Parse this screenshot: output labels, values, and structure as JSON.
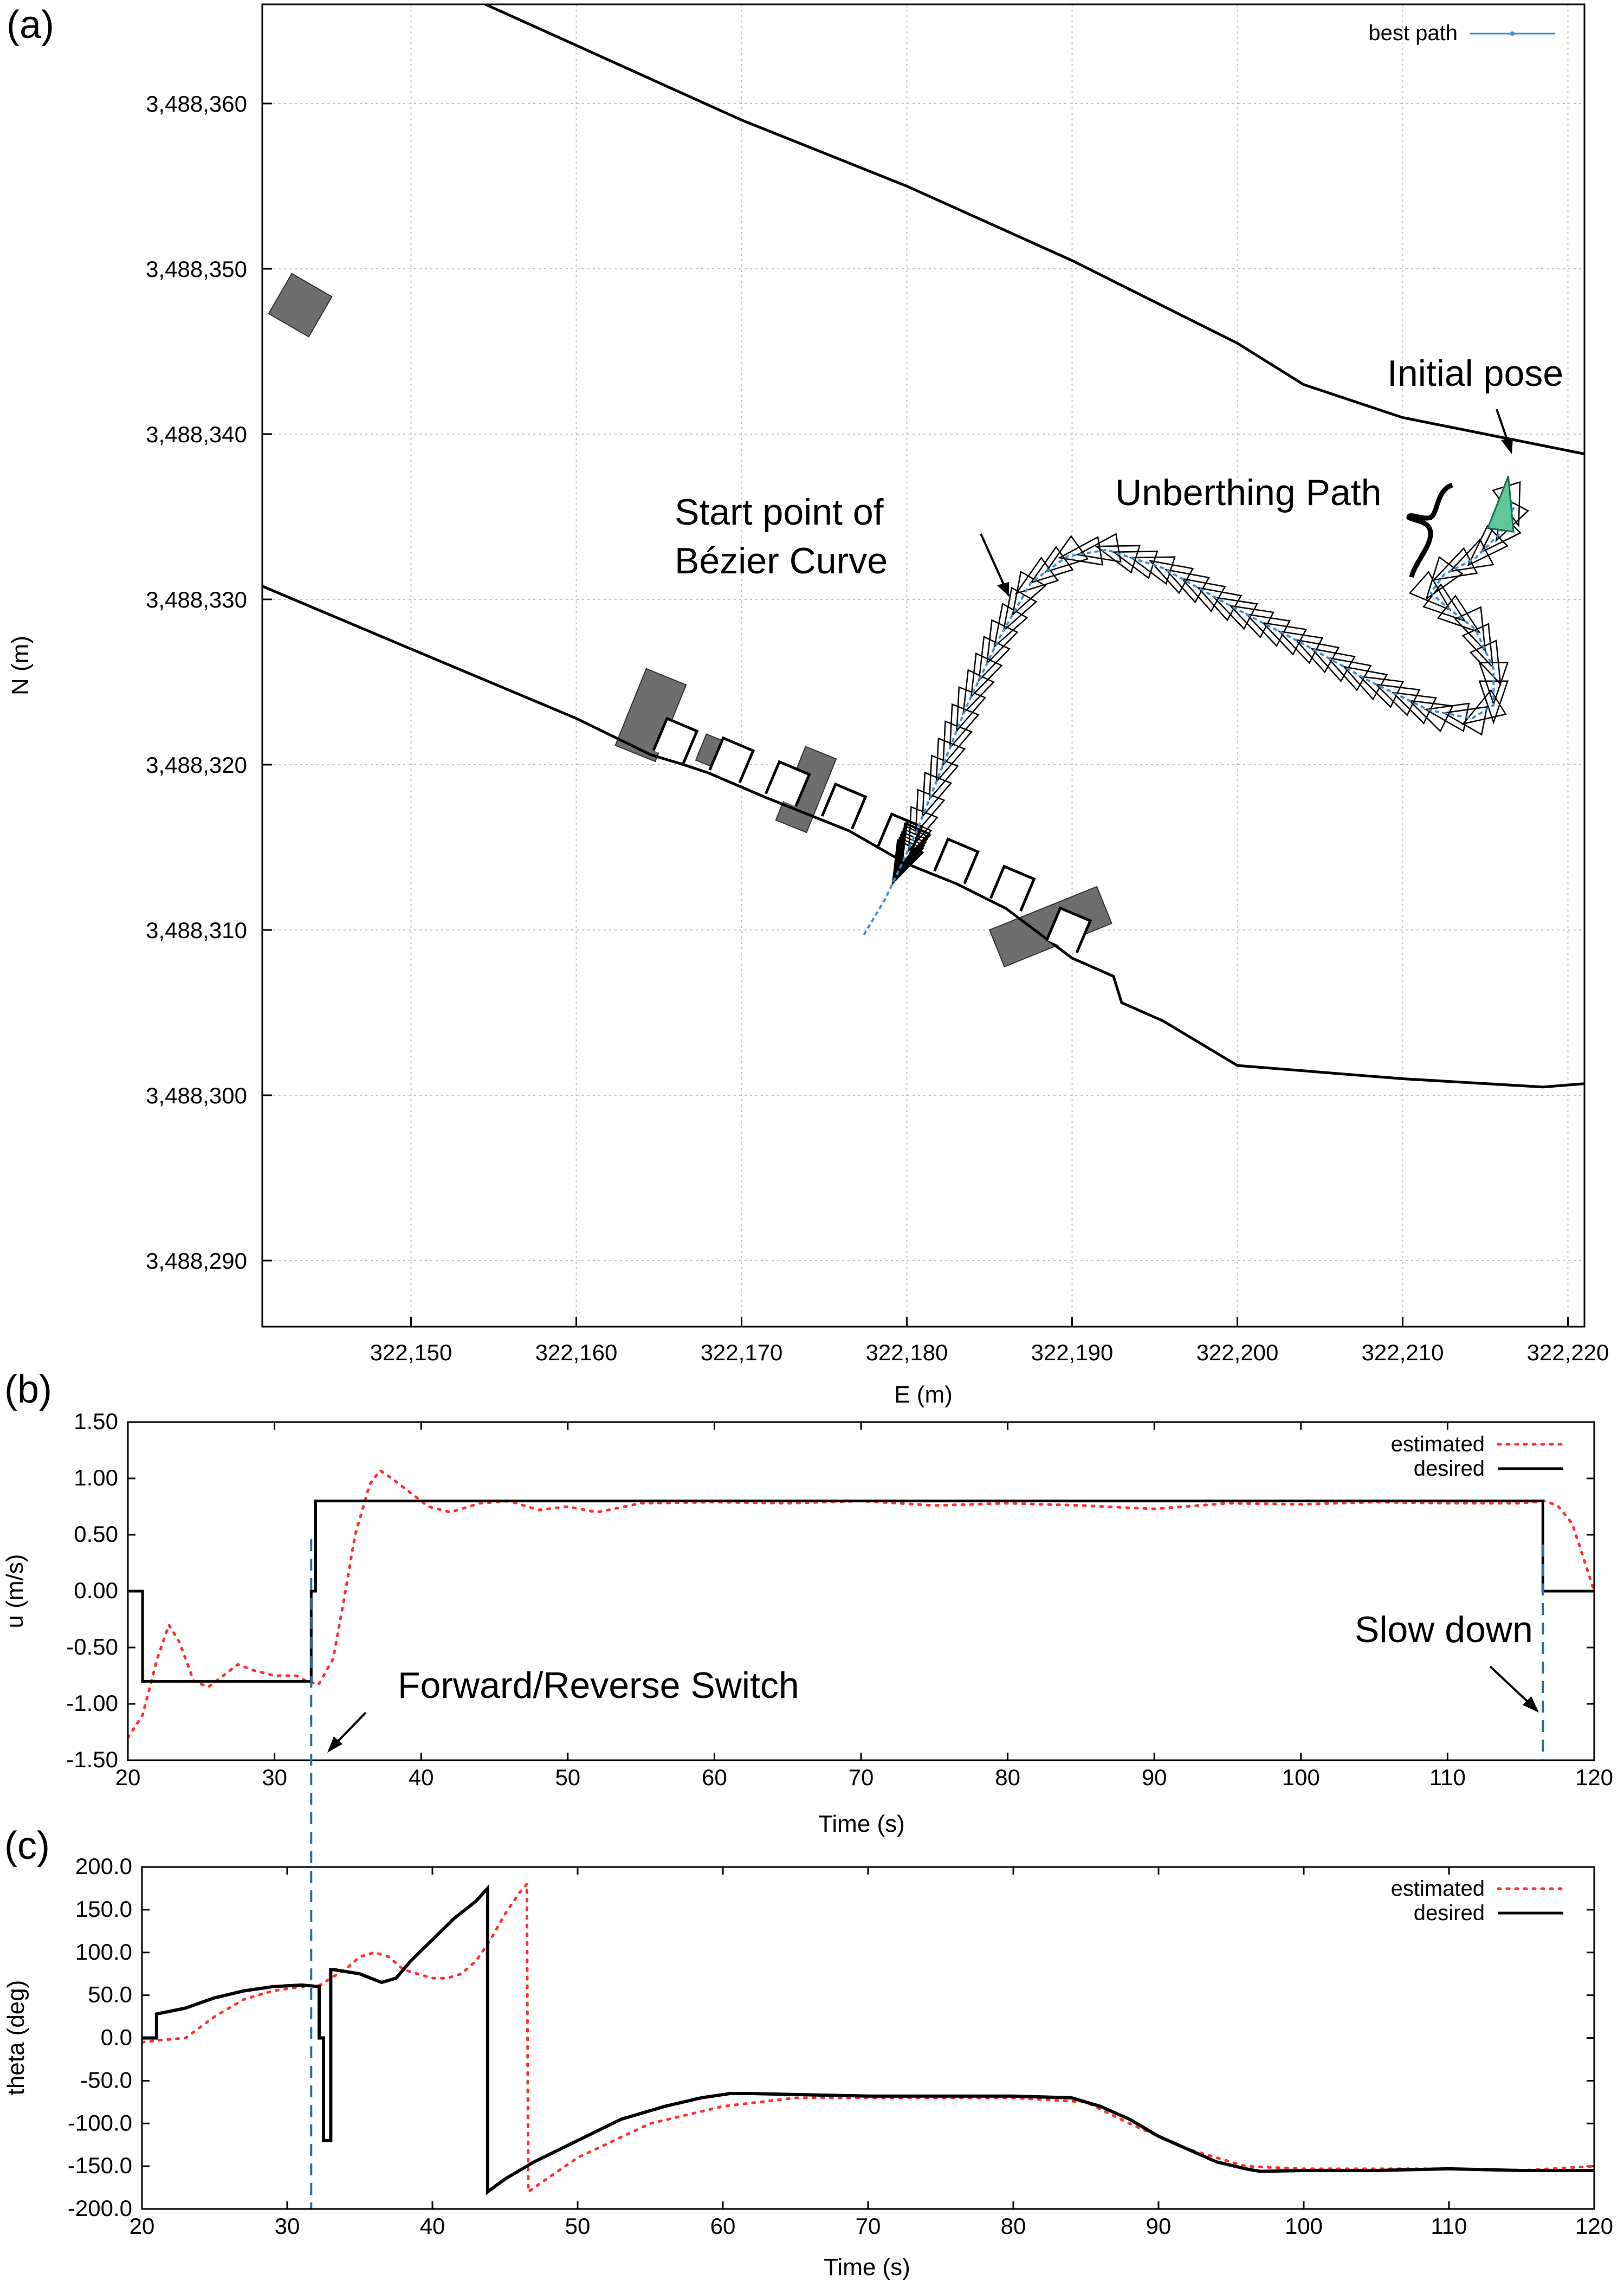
{
  "colors": {
    "frame": "#000000",
    "grid": "#bdbdbd",
    "path": "#3a8fd0",
    "estimated": "#ff3030",
    "desired": "#000000",
    "obstacle": "#6e6e6e",
    "initial_pose": "#5fc79a",
    "switch_line": "#1f6fb2"
  },
  "annotations": {
    "start_point_line1": "Start point of",
    "start_point_line2": "Bézier Curve",
    "unberthing": "Unberthing Path",
    "initial_pose": "Initial pose",
    "forward_reverse": "Forward/Reverse Switch",
    "slow_down": "Slow down"
  },
  "chart_data": [
    {
      "panel": "(a)",
      "type": "scatter",
      "title": "",
      "xlabel": "E (m)",
      "ylabel": "N (m)",
      "xlim": [
        322141,
        322221
      ],
      "ylim": [
        3488286,
        3488366
      ],
      "xticks": [
        322150,
        322160,
        322170,
        322180,
        322190,
        322200,
        322210,
        322220
      ],
      "xtick_labels": [
        "322,150",
        "322,160",
        "322,170",
        "322,180",
        "322,190",
        "322,200",
        "322,210",
        "322,220"
      ],
      "yticks": [
        3488290,
        3488300,
        3488310,
        3488320,
        3488330,
        3488340,
        3488350,
        3488360
      ],
      "ytick_labels": [
        "3,488,290",
        "3,488,300",
        "3,488,310",
        "3,488,320",
        "3,488,330",
        "3,488,340",
        "3,488,350",
        "3,488,360"
      ],
      "grid": true,
      "legend": [
        {
          "name": "best path",
          "position": "top-right"
        }
      ],
      "series": [
        {
          "name": "best path",
          "x": [
            322177.4,
            322178.7,
            322179.7,
            322180.6,
            322182.0,
            322183.6,
            322185.5,
            322187.5,
            322189.7,
            322192.1,
            322195.5,
            322199.6,
            322204.0,
            322208.1,
            322211.6,
            322214.2,
            322215.5,
            322215.5,
            322214.4,
            322212.6,
            322211.7,
            322212.5,
            322214.4,
            322215.9,
            322216.7,
            322216.3
          ],
          "y": [
            3488309.7,
            3488311.9,
            3488314.0,
            3488316.0,
            3488319.5,
            3488323.5,
            3488327.5,
            3488331.0,
            3488332.6,
            3488333.0,
            3488331.9,
            3488329.6,
            3488327.3,
            3488325.0,
            3488323.3,
            3488322.8,
            3488323.6,
            3488325.8,
            3488328.2,
            3488329.6,
            3488330.4,
            3488331.5,
            3488332.5,
            3488334.0,
            3488335.5,
            3488336.8
          ]
        },
        {
          "name": "upper shoreline",
          "x": [
            322154.5,
            322170.0,
            322180.0,
            322190.0,
            322200.0,
            322204.0,
            322210.0,
            322221.0
          ],
          "y": [
            3488366.0,
            3488359.0,
            3488355.0,
            3488350.5,
            3488345.5,
            3488343.0,
            3488341.0,
            3488338.8
          ]
        },
        {
          "name": "quay",
          "x": [
            322141.0,
            322150.0,
            322160.0,
            322164.5,
            322166.5,
            322168.0,
            322171.5,
            322176.5,
            322180.0,
            322183.0,
            322186.0,
            322190.0,
            322192.5,
            322193.0,
            322195.5,
            322200.0,
            322210.0,
            322218.5,
            322221.0
          ],
          "y": [
            3488330.8,
            3488327.0,
            3488322.8,
            3488320.6,
            3488320.0,
            3488319.5,
            3488318.0,
            3488316.0,
            3488314.0,
            3488312.8,
            3488311.3,
            3488308.3,
            3488307.2,
            3488305.6,
            3488304.5,
            3488301.8,
            3488301.0,
            3488300.5,
            3488300.7
          ]
        }
      ],
      "obstacles": [
        {
          "cx": 322143.3,
          "cy": 3488347.8,
          "w": 2.8,
          "h": 2.8,
          "angle": 30
        },
        {
          "cx": 322164.5,
          "cy": 3488323.0,
          "w": 2.6,
          "h": 5.0,
          "angle": 22
        },
        {
          "cx": 322168.2,
          "cy": 3488320.8,
          "w": 1.4,
          "h": 1.7,
          "angle": 22
        },
        {
          "cx": 322173.9,
          "cy": 3488318.5,
          "w": 2.0,
          "h": 4.8,
          "angle": 22
        },
        {
          "cx": 322188.7,
          "cy": 3488310.2,
          "w": 7.0,
          "h": 2.4,
          "angle": -22
        }
      ]
    },
    {
      "panel": "(b)",
      "type": "line",
      "title": "",
      "xlabel": "Time (s)",
      "ylabel": "u (m/s)",
      "xlim": [
        20,
        120
      ],
      "ylim": [
        -1.5,
        1.5
      ],
      "xticks": [
        20,
        30,
        40,
        50,
        60,
        70,
        80,
        90,
        100,
        110,
        120
      ],
      "xtick_labels": [
        "20",
        "30",
        "40",
        "50",
        "60",
        "70",
        "80",
        "90",
        "100",
        "110",
        "120"
      ],
      "yticks": [
        -1.5,
        -1.0,
        -0.5,
        0.0,
        0.5,
        1.0,
        1.5
      ],
      "ytick_labels": [
        "-1.50",
        "-1.00",
        "-0.50",
        "0.00",
        "0.50",
        "1.00",
        "1.50"
      ],
      "grid": false,
      "legend_position": "top-right",
      "series": [
        {
          "name": "estimated",
          "style": "dotted",
          "x": [
            20,
            21,
            22,
            22.8,
            23.5,
            24.5,
            25.5,
            26.5,
            27.5,
            28.5,
            30,
            31.5,
            32.2,
            33,
            34,
            34.7,
            35.5,
            36.5,
            37.2,
            38,
            39,
            40.5,
            42,
            44,
            46,
            48,
            50,
            52,
            55,
            60,
            65,
            70,
            75,
            80,
            85,
            90,
            95,
            100,
            105,
            110,
            115,
            116.6,
            117.5,
            118.5,
            119.5,
            120
          ],
          "y": [
            -1.3,
            -1.1,
            -0.6,
            -0.3,
            -0.45,
            -0.8,
            -0.85,
            -0.75,
            -0.65,
            -0.7,
            -0.75,
            -0.75,
            -0.8,
            -0.83,
            -0.6,
            -0.1,
            0.5,
            0.95,
            1.07,
            1.0,
            0.9,
            0.75,
            0.7,
            0.78,
            0.8,
            0.72,
            0.75,
            0.7,
            0.78,
            0.79,
            0.78,
            0.8,
            0.76,
            0.78,
            0.76,
            0.73,
            0.78,
            0.77,
            0.79,
            0.78,
            0.78,
            0.8,
            0.76,
            0.6,
            0.2,
            0.0
          ]
        },
        {
          "name": "desired",
          "style": "solid",
          "x": [
            20,
            21,
            21,
            32.5,
            32.5,
            32.8,
            32.8,
            116.5,
            116.5,
            120
          ],
          "y": [
            0.0,
            0.0,
            -0.8,
            -0.8,
            0.0,
            0.0,
            0.8,
            0.8,
            0.0,
            0.0
          ]
        }
      ]
    },
    {
      "panel": "(c)",
      "type": "line",
      "title": "",
      "xlabel": "Time (s)",
      "ylabel": "theta (deg)",
      "xlim": [
        20,
        120
      ],
      "ylim": [
        -200,
        200
      ],
      "xticks": [
        20,
        30,
        40,
        50,
        60,
        70,
        80,
        90,
        100,
        110,
        120
      ],
      "xtick_labels": [
        "20",
        "30",
        "40",
        "50",
        "60",
        "70",
        "80",
        "90",
        "100",
        "110",
        "120"
      ],
      "yticks": [
        -200,
        -150,
        -100,
        -50,
        0,
        50,
        100,
        150,
        200
      ],
      "ytick_labels": [
        "-200.0",
        "-150.0",
        "-100.0",
        "-50.0",
        "0.0",
        "50.0",
        "100.0",
        "150.0",
        "200.0"
      ],
      "grid": false,
      "legend_position": "top-right",
      "series": [
        {
          "name": "estimated",
          "style": "dotted",
          "x": [
            20,
            21,
            23,
            25,
            27,
            29,
            31,
            32.3,
            33,
            34,
            35,
            36,
            37,
            38,
            39,
            40,
            41,
            42,
            43,
            44,
            45,
            46,
            46.5,
            46.6,
            47,
            50,
            55,
            60,
            65,
            70,
            75,
            80,
            85,
            88,
            92,
            96,
            100,
            105,
            110,
            115,
            120
          ],
          "y": [
            -5,
            -3,
            0,
            25,
            45,
            55,
            60,
            62,
            70,
            80,
            95,
            100,
            95,
            80,
            75,
            70,
            70,
            75,
            90,
            115,
            145,
            170,
            180,
            -180,
            -175,
            -140,
            -100,
            -80,
            -70,
            -70,
            -70,
            -70,
            -75,
            -100,
            -130,
            -150,
            -153,
            -153,
            -153,
            -155,
            -150
          ]
        },
        {
          "name": "desired",
          "style": "solid",
          "x": [
            20,
            21,
            21,
            23,
            25,
            27,
            29,
            31,
            32.2,
            32.2,
            32.5,
            32.5,
            33,
            33,
            33.2,
            33.2,
            35,
            36.5,
            37.5,
            38.5,
            40,
            41.5,
            43,
            43.8,
            43.8,
            45,
            47,
            50,
            53,
            56,
            58.5,
            60.5,
            62,
            70,
            80,
            84,
            86,
            88,
            90,
            92,
            94,
            96,
            97,
            100,
            105,
            110,
            115,
            120
          ],
          "y": [
            0,
            0,
            28,
            35,
            47,
            55,
            60,
            62,
            60,
            0,
            0,
            -120,
            -120,
            80,
            80,
            80,
            75,
            65,
            70,
            90,
            115,
            140,
            160,
            175,
            -180,
            -165,
            -145,
            -120,
            -95,
            -80,
            -70,
            -65,
            -65,
            -68,
            -68,
            -70,
            -80,
            -95,
            -115,
            -130,
            -145,
            -153,
            -156,
            -155,
            -155,
            -153,
            -155,
            -155
          ]
        }
      ]
    }
  ]
}
